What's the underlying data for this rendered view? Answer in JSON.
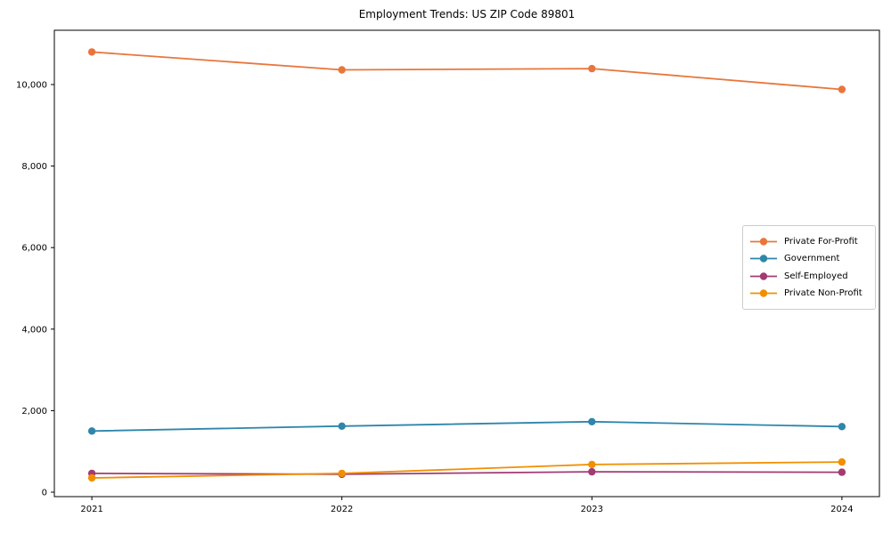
{
  "chart_data": {
    "type": "line",
    "title": "Employment Trends: US ZIP Code 89801",
    "xlabel": "",
    "ylabel": "",
    "x": [
      2021,
      2022,
      2023,
      2024
    ],
    "x_tick_labels": [
      "2021",
      "2022",
      "2023",
      "2024"
    ],
    "y_ticks": [
      0,
      2000,
      4000,
      6000,
      8000,
      10000
    ],
    "y_tick_labels": [
      "0",
      "2,000",
      "4,000",
      "6,000",
      "8,000",
      "10,000"
    ],
    "xlim": [
      2020.85,
      2024.15
    ],
    "ylim": [
      -109,
      11332
    ],
    "grid": false,
    "legend_position": "center-right",
    "series": [
      {
        "name": "Private For-Profit",
        "color": "#E8763C",
        "values": [
          10800,
          10360,
          10390,
          9880
        ]
      },
      {
        "name": "Government",
        "color": "#2E86AB",
        "values": [
          1500,
          1620,
          1730,
          1610
        ]
      },
      {
        "name": "Self-Employed",
        "color": "#A23B72",
        "values": [
          460,
          440,
          500,
          490
        ]
      },
      {
        "name": "Private Non-Profit",
        "color": "#F18F01",
        "values": [
          350,
          460,
          680,
          740
        ]
      }
    ],
    "frame_color": "#000000",
    "tick_color": "#000000"
  }
}
